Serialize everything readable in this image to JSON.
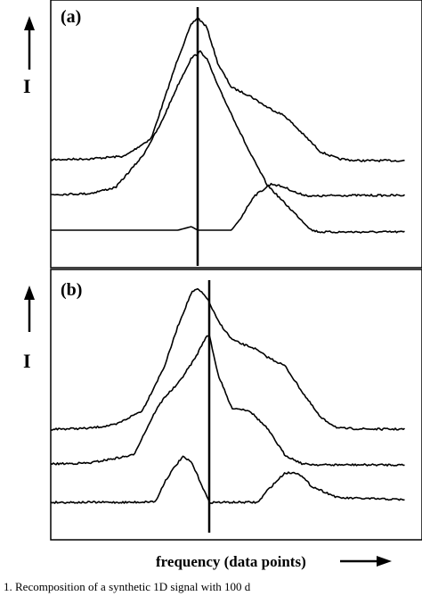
{
  "chart_data": [
    {
      "type": "line",
      "panel_label": "(a)",
      "ylabel": "I",
      "xlabel": "frequency (data points)",
      "marker_line_x": 222,
      "x_range": [
        0,
        474
      ],
      "series": [
        {
          "x": [
            57,
            100,
            140,
            170,
            200,
            215,
            222,
            232,
            245,
            260,
            280,
            300,
            320,
            340,
            360,
            380,
            400,
            420,
            455
          ],
          "y": [
            179,
            178,
            175,
            155,
            65,
            27,
            20,
            30,
            72,
            98,
            107,
            120,
            130,
            150,
            170,
            178,
            180,
            180,
            180
          ]
        },
        {
          "x": [
            57,
            100,
            130,
            160,
            180,
            200,
            215,
            225,
            232,
            245,
            260,
            280,
            300,
            320,
            340,
            350,
            360,
            400,
            455
          ],
          "y": [
            218,
            217,
            210,
            175,
            140,
            95,
            65,
            58,
            65,
            97,
            128,
            170,
            207,
            228,
            248,
            258,
            260,
            260,
            260
          ]
        },
        {
          "x": [
            57,
            150,
            200,
            215,
            222,
            260,
            270,
            285,
            305,
            320,
            335,
            350,
            380,
            455
          ],
          "y": [
            258,
            258,
            258,
            254,
            258,
            258,
            245,
            220,
            206,
            210,
            217,
            220,
            219,
            219
          ]
        }
      ]
    },
    {
      "type": "line",
      "panel_label": "(b)",
      "ylabel": "I",
      "xlabel": "frequency (data points)",
      "marker_line_x": 235,
      "x_range": [
        0,
        474
      ],
      "series": [
        {
          "x": [
            57,
            100,
            130,
            160,
            185,
            200,
            215,
            222,
            232,
            245,
            260,
            270,
            285,
            300,
            320,
            340,
            360,
            380,
            420,
            455
          ],
          "y": [
            481,
            480,
            476,
            460,
            410,
            365,
            328,
            324,
            333,
            360,
            380,
            385,
            390,
            400,
            410,
            440,
            468,
            480,
            481,
            481
          ]
        },
        {
          "x": [
            57,
            100,
            150,
            175,
            185,
            200,
            220,
            230,
            235,
            245,
            260,
            280,
            300,
            320,
            340,
            360,
            380,
            420,
            455
          ],
          "y": [
            520,
            519,
            510,
            460,
            445,
            430,
            400,
            380,
            375,
            420,
            457,
            460,
            480,
            510,
            520,
            521,
            521,
            521,
            521
          ]
        },
        {
          "x": [
            57,
            150,
            175,
            185,
            195,
            205,
            215,
            225,
            235,
            260,
            290,
            300,
            320,
            335,
            350,
            380,
            455
          ],
          "y": [
            563,
            563,
            562,
            540,
            525,
            512,
            518,
            540,
            563,
            563,
            563,
            550,
            530,
            530,
            545,
            558,
            560
          ]
        }
      ]
    }
  ],
  "caption_fragment": "1.   Recomposition of a synthetic 1D signal with 100 d"
}
